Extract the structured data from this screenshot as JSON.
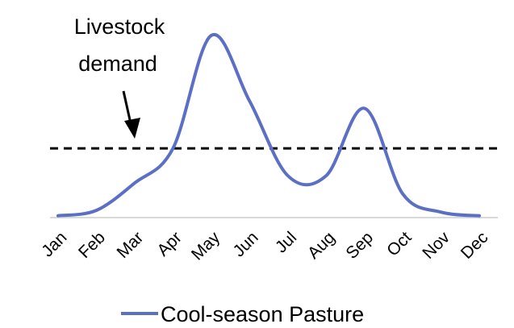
{
  "chart_data": {
    "type": "line",
    "title": "",
    "xlabel": "",
    "ylabel": "",
    "categories": [
      "Jan",
      "Feb",
      "Mar",
      "Apr",
      "May",
      "Jun",
      "Jul",
      "Aug",
      "Sep",
      "Oct",
      "Nov",
      "Dec"
    ],
    "ylim": [
      0,
      100
    ],
    "series": [
      {
        "name": "Cool-season Pasture",
        "color": "#5b6fc4",
        "values": [
          1,
          4,
          19,
          38,
          100,
          64,
          23,
          23,
          60,
          13,
          3,
          1
        ]
      }
    ],
    "reference_line": {
      "name": "Livestock demand",
      "value": 38,
      "style": "dashed",
      "color": "#000000"
    },
    "annotations": [
      {
        "text_lines": [
          "Livestock",
          "demand"
        ],
        "points_to": "Livestock demand"
      }
    ],
    "legend": {
      "position": "bottom",
      "entries": [
        "Cool-season Pasture"
      ]
    },
    "axis_color": "#d9d9d9"
  }
}
